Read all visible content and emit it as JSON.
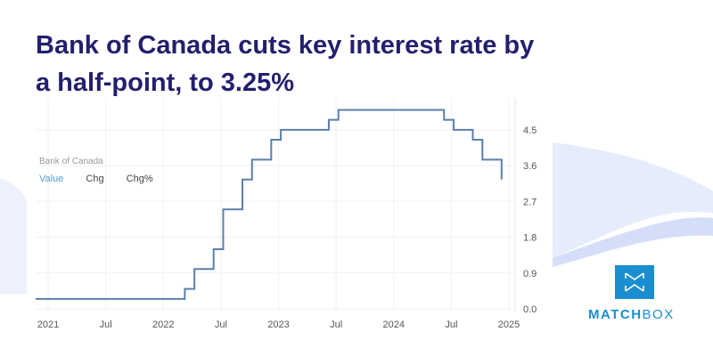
{
  "title": "Bank of Canada cuts key interest rate by a half-point, to 3.25%",
  "legend": {
    "source": "Bank of Canada",
    "tabs": [
      "Value",
      "Chg",
      "Chg%"
    ],
    "active": "Value"
  },
  "brand": {
    "part1": "MATCH",
    "part2": "BOX",
    "color": "#1a8ed0"
  },
  "chart_data": {
    "type": "line",
    "step": true,
    "line_color": "#5b7fae",
    "x_ticks": [
      "2021",
      "Jul",
      "2022",
      "Jul",
      "2023",
      "Jul",
      "2024",
      "Jul",
      "2025"
    ],
    "y_ticks": [
      "0.0",
      "0.9",
      "1.8",
      "2.7",
      "3.6",
      "4.5"
    ],
    "ylim": [
      0,
      5.1
    ],
    "y_axis_side": "right",
    "grid": true,
    "points": [
      {
        "date": "2020-11",
        "value": 0.25
      },
      {
        "date": "2022-03",
        "value": 0.5
      },
      {
        "date": "2022-04",
        "value": 1.0
      },
      {
        "date": "2022-06",
        "value": 1.5
      },
      {
        "date": "2022-07",
        "value": 2.5
      },
      {
        "date": "2022-09",
        "value": 3.25
      },
      {
        "date": "2022-10",
        "value": 3.75
      },
      {
        "date": "2022-12",
        "value": 4.25
      },
      {
        "date": "2023-01",
        "value": 4.5
      },
      {
        "date": "2023-06",
        "value": 4.75
      },
      {
        "date": "2023-07",
        "value": 5.0
      },
      {
        "date": "2024-06",
        "value": 4.75
      },
      {
        "date": "2024-07",
        "value": 4.5
      },
      {
        "date": "2024-09",
        "value": 4.25
      },
      {
        "date": "2024-10",
        "value": 3.75
      },
      {
        "date": "2024-12",
        "value": 3.25
      }
    ]
  }
}
